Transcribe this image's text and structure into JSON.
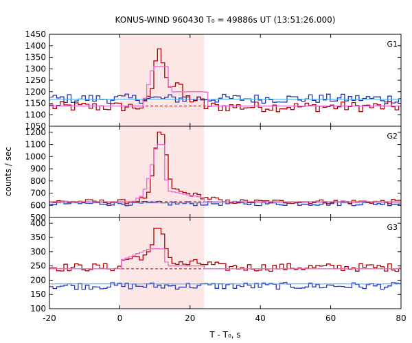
{
  "chart_data": {
    "type": "line",
    "title": "KONUS-WIND 960430 T₀ = 49886s UT (13:51:26.000)",
    "xlabel": "T - T₀, s",
    "ylabel": "counts / sec",
    "xlim": [
      -20,
      80
    ],
    "x_ticks": [
      -20,
      0,
      20,
      40,
      60,
      80
    ],
    "highlight_interval": [
      0,
      24
    ],
    "colors": {
      "burst": "#aa0000",
      "background": "#2233bb",
      "burst_model": "#ee66cc",
      "background_model": "#55aaee",
      "highlight": "#fde6e6"
    },
    "panels": [
      {
        "label": "G1",
        "ylim": [
          1050,
          1450
        ],
        "y_ticks": [
          1050,
          1100,
          1150,
          1200,
          1250,
          1300,
          1350,
          1400,
          1450
        ],
        "burst_base": 1135,
        "burst_noise": 22,
        "bg_base": 1170,
        "bg_noise": 20,
        "burst_pulse": [
          [
            6,
            1135
          ],
          [
            8,
            1170
          ],
          [
            9,
            1240
          ],
          [
            10,
            1380
          ],
          [
            11,
            1370
          ],
          [
            12,
            1330
          ],
          [
            13,
            1260
          ],
          [
            14,
            1220
          ],
          [
            16,
            1240
          ],
          [
            18,
            1175
          ],
          [
            22,
            1160
          ],
          [
            24,
            1150
          ]
        ],
        "model_pulse": [
          [
            6,
            1135
          ],
          [
            9,
            1310
          ],
          [
            13,
            1310
          ],
          [
            14,
            1200
          ],
          [
            24,
            1200
          ],
          [
            25,
            1150
          ]
        ],
        "fit_burst": 1138,
        "fit_bg": 1168
      },
      {
        "label": "G2",
        "ylim": [
          500,
          1250
        ],
        "y_ticks": [
          500,
          600,
          700,
          800,
          900,
          1000,
          1100,
          1200
        ],
        "burst_base": 630,
        "burst_noise": 18,
        "bg_base": 615,
        "bg_noise": 18,
        "burst_pulse": [
          [
            4,
            640
          ],
          [
            6,
            650
          ],
          [
            8,
            700
          ],
          [
            9,
            900
          ],
          [
            10,
            1120
          ],
          [
            11,
            1220
          ],
          [
            12,
            1170
          ],
          [
            13,
            960
          ],
          [
            14,
            760
          ],
          [
            16,
            720
          ],
          [
            18,
            700
          ],
          [
            20,
            690
          ],
          [
            22,
            680
          ],
          [
            24,
            660
          ],
          [
            28,
            650
          ]
        ],
        "model_pulse": [
          [
            4,
            650
          ],
          [
            6,
            680
          ],
          [
            8,
            850
          ],
          [
            10,
            1100
          ],
          [
            12,
            1100
          ],
          [
            13,
            720
          ],
          [
            20,
            680
          ],
          [
            24,
            660
          ]
        ],
        "fit_burst": 630,
        "fit_bg": 620
      },
      {
        "label": "G3",
        "ylim": [
          100,
          420
        ],
        "y_ticks": [
          100,
          150,
          200,
          250,
          300,
          350,
          400
        ],
        "burst_base": 245,
        "burst_noise": 14,
        "bg_base": 180,
        "bg_noise": 12,
        "burst_pulse": [
          [
            0,
            270
          ],
          [
            4,
            280
          ],
          [
            6,
            285
          ],
          [
            8,
            290
          ],
          [
            9,
            330
          ],
          [
            10,
            390
          ],
          [
            11,
            385
          ],
          [
            12,
            355
          ],
          [
            13,
            310
          ],
          [
            14,
            270
          ],
          [
            16,
            255
          ],
          [
            22,
            260
          ],
          [
            28,
            250
          ]
        ],
        "model_pulse": [
          [
            0,
            270
          ],
          [
            8,
            310
          ],
          [
            12,
            310
          ],
          [
            13,
            250
          ],
          [
            24,
            250
          ]
        ],
        "fit_burst": 240,
        "fit_bg": 187
      }
    ]
  }
}
